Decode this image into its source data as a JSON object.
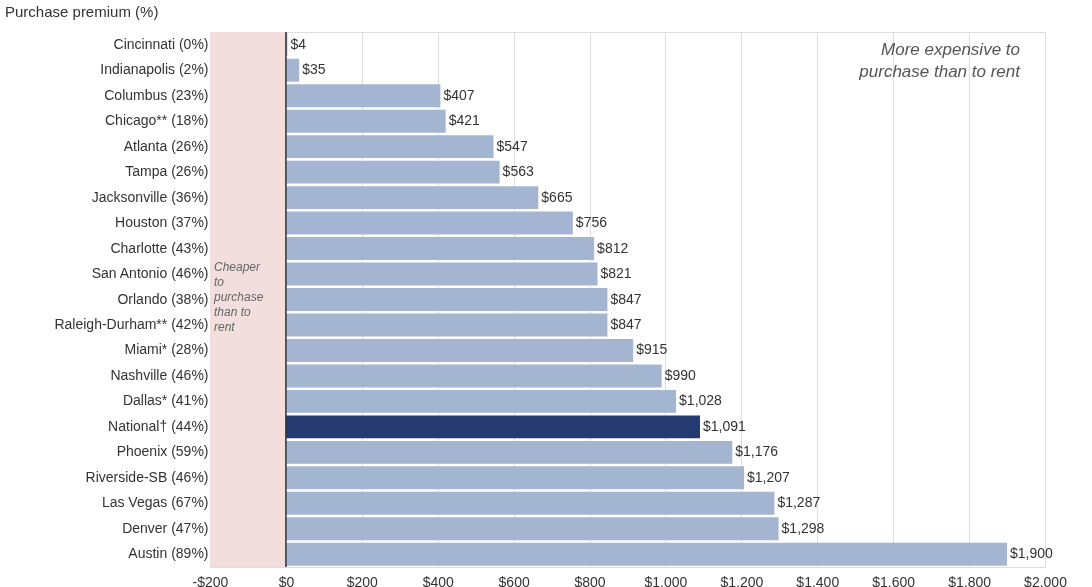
{
  "chart_data": {
    "type": "bar",
    "orientation": "horizontal",
    "title": "Purchase premium (%)",
    "categories": [
      "Cincinnati (0%)",
      "Indianapolis (2%)",
      "Columbus (23%)",
      "Chicago** (18%)",
      "Atlanta (26%)",
      "Tampa (26%)",
      "Jacksonville (36%)",
      "Houston (37%)",
      "Charlotte (43%)",
      "San Antonio (46%)",
      "Orlando (38%)",
      "Raleigh-Durham** (42%)",
      "Miami* (28%)",
      "Nashville (46%)",
      "Dallas* (41%)",
      "National† (44%)",
      "Phoenix (59%)",
      "Riverside-SB (46%)",
      "Las Vegas (67%)",
      "Denver (47%)",
      "Austin (89%)"
    ],
    "values": [
      4,
      35,
      407,
      421,
      547,
      563,
      665,
      756,
      812,
      821,
      847,
      847,
      915,
      990,
      1028,
      1091,
      1176,
      1207,
      1287,
      1298,
      1900
    ],
    "value_labels": [
      "$4",
      "$35",
      "$407",
      "$421",
      "$547",
      "$563",
      "$665",
      "$756",
      "$812",
      "$821",
      "$847",
      "$847",
      "$915",
      "$990",
      "$1,028",
      "$1,091",
      "$1,176",
      "$1,207",
      "$1,287",
      "$1,298",
      "$1,900"
    ],
    "colors": [
      "#a3b5d1",
      "#a3b5d1",
      "#a3b5d1",
      "#a3b5d1",
      "#a3b5d1",
      "#a3b5d1",
      "#a3b5d1",
      "#a3b5d1",
      "#a3b5d1",
      "#a3b5d1",
      "#a3b5d1",
      "#a3b5d1",
      "#a3b5d1",
      "#a3b5d1",
      "#a3b5d1",
      "#253a6e",
      "#a3b5d1",
      "#a3b5d1",
      "#a3b5d1",
      "#a3b5d1",
      "#a3b5d1"
    ],
    "xlim": [
      -200,
      2000
    ],
    "xticks": [
      {
        "value": -200,
        "label": "-$200"
      },
      {
        "value": 0,
        "label": "$0"
      },
      {
        "value": 200,
        "label": "$200"
      },
      {
        "value": 400,
        "label": "$400"
      },
      {
        "value": 600,
        "label": "$600"
      },
      {
        "value": 800,
        "label": "$800"
      },
      {
        "value": 1000,
        "label": "$1,000"
      },
      {
        "value": 1200,
        "label": "$1,200"
      },
      {
        "value": 1400,
        "label": "$1,400"
      },
      {
        "value": 1600,
        "label": "$1,600"
      },
      {
        "value": 1800,
        "label": "$1,800"
      },
      {
        "value": 2000,
        "label": "$2,000"
      }
    ],
    "bands": [
      {
        "axis": "x",
        "from": -200,
        "to": 0,
        "label": "Cheaper to purchase than to rent",
        "color": "#f3dede"
      }
    ],
    "ref_lines": [
      {
        "axis": "x",
        "value": 0,
        "color": "#333333"
      }
    ],
    "annotations": [
      "More expensive to purchase than to rent"
    ],
    "grid": "x"
  }
}
